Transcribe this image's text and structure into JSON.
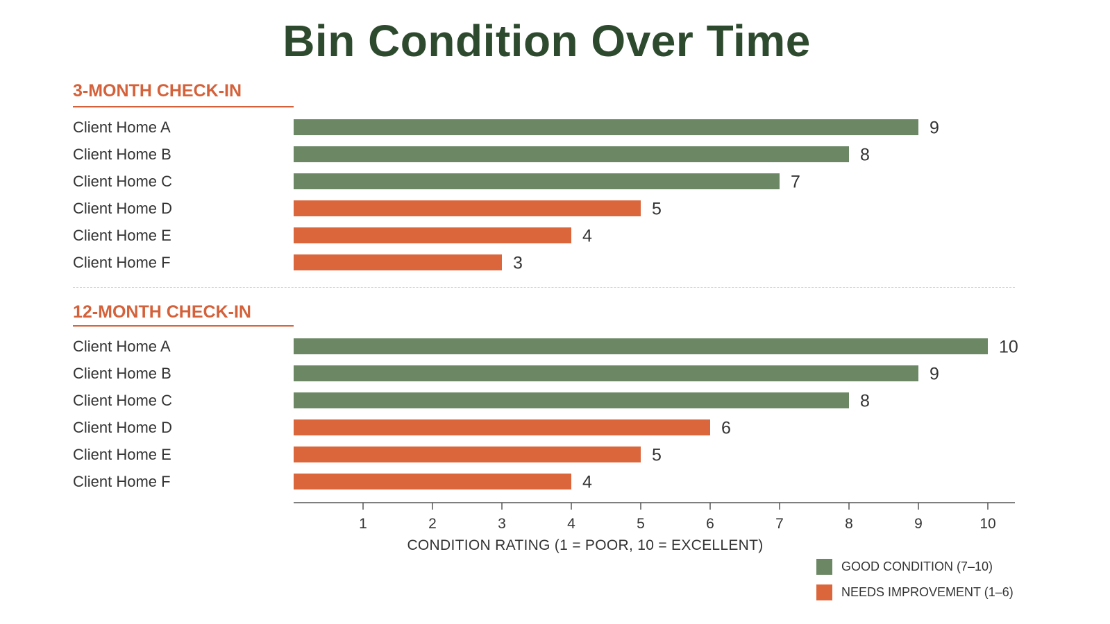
{
  "chart_data": {
    "type": "bar",
    "orientation": "horizontal",
    "title": "Bin Condition Over Time",
    "xlabel": "CONDITION RATING (1 = POOR, 10 = EXCELLENT)",
    "xlim": [
      0,
      10
    ],
    "x_ticks": [
      1,
      2,
      3,
      4,
      5,
      6,
      7,
      8,
      9,
      10
    ],
    "grid": false,
    "legend_position": "bottom-right",
    "colors": {
      "good": "#6b8764",
      "needs": "#db663b",
      "axis": "#555555"
    },
    "legend": [
      {
        "label": "GOOD CONDITION (7–10)",
        "color_key": "good"
      },
      {
        "label": "NEEDS IMPROVEMENT (1–6)",
        "color_key": "needs"
      }
    ],
    "groups": [
      {
        "name": "3-MONTH CHECK-IN",
        "categories": [
          "Client Home A",
          "Client Home B",
          "Client Home C",
          "Client Home D",
          "Client Home E",
          "Client Home F"
        ],
        "values": [
          9,
          8,
          7,
          5,
          4,
          3
        ]
      },
      {
        "name": "12-MONTH CHECK-IN",
        "categories": [
          "Client Home A",
          "Client Home B",
          "Client Home C",
          "Client Home D",
          "Client Home E",
          "Client Home F"
        ],
        "values": [
          10,
          9,
          8,
          6,
          5,
          4
        ]
      }
    ]
  }
}
